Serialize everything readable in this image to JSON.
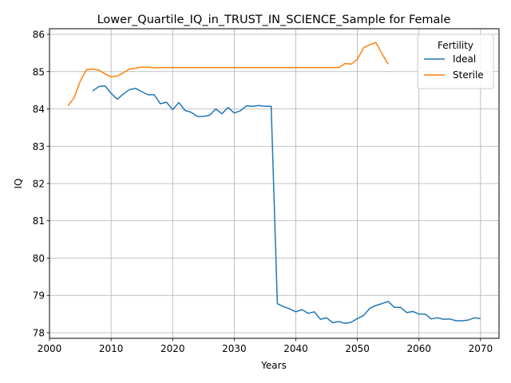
{
  "chart_data": {
    "type": "line",
    "title": "Lower_Quartile_IQ_in_TRUST_IN_SCIENCE_Sample for Female",
    "xlabel": "Years",
    "ylabel": "IQ",
    "xlim": [
      2000,
      2073
    ],
    "ylim": [
      77.85,
      86.15
    ],
    "xticks": [
      2000,
      2010,
      2020,
      2030,
      2040,
      2050,
      2060,
      2070
    ],
    "yticks": [
      78,
      79,
      80,
      81,
      82,
      83,
      84,
      85,
      86
    ],
    "grid": true,
    "legend": {
      "title": "Fertility",
      "placement": "top-right"
    },
    "series": [
      {
        "name": "Ideal",
        "color": "#1f77b4",
        "x": [
          2007,
          2008,
          2009,
          2010,
          2011,
          2012,
          2013,
          2014,
          2015,
          2016,
          2017,
          2018,
          2019,
          2020,
          2021,
          2022,
          2023,
          2024,
          2025,
          2026,
          2027,
          2028,
          2029,
          2030,
          2031,
          2032,
          2033,
          2034,
          2035,
          2036,
          2037,
          2038,
          2039,
          2040,
          2041,
          2042,
          2043,
          2044,
          2045,
          2046,
          2047,
          2048,
          2049,
          2050,
          2051,
          2052,
          2053,
          2054,
          2055,
          2056,
          2057,
          2058,
          2059,
          2060,
          2061,
          2062,
          2063,
          2064,
          2065,
          2066,
          2067,
          2068,
          2069,
          2070
        ],
        "y": [
          84.48,
          84.6,
          84.62,
          84.42,
          84.26,
          84.4,
          84.52,
          84.55,
          84.46,
          84.38,
          84.38,
          84.14,
          84.18,
          83.98,
          84.17,
          83.96,
          83.91,
          83.8,
          83.8,
          83.83,
          84.0,
          83.87,
          84.04,
          83.89,
          83.95,
          84.08,
          84.07,
          84.09,
          84.07,
          84.07,
          78.78,
          78.7,
          78.64,
          78.56,
          78.62,
          78.52,
          78.56,
          78.36,
          78.4,
          78.27,
          78.3,
          78.25,
          78.28,
          78.38,
          78.46,
          78.65,
          78.73,
          78.78,
          78.84,
          78.68,
          78.68,
          78.54,
          78.57,
          78.5,
          78.5,
          78.37,
          78.4,
          78.36,
          78.37,
          78.32,
          78.32,
          78.34,
          78.4,
          78.38
        ]
      },
      {
        "name": "Sterile",
        "color": "#ff7f0e",
        "x": [
          2003,
          2004,
          2005,
          2006,
          2007,
          2008,
          2009,
          2010,
          2011,
          2012,
          2013,
          2014,
          2015,
          2016,
          2017,
          2018,
          2019,
          2020,
          2021,
          2022,
          2023,
          2024,
          2025,
          2026,
          2027,
          2028,
          2029,
          2030,
          2031,
          2032,
          2033,
          2034,
          2035,
          2036,
          2037,
          2038,
          2039,
          2040,
          2041,
          2042,
          2043,
          2044,
          2045,
          2046,
          2047,
          2048,
          2049,
          2050,
          2051,
          2052,
          2053,
          2054,
          2055
        ],
        "y": [
          84.08,
          84.3,
          84.75,
          85.05,
          85.07,
          85.04,
          84.94,
          84.86,
          84.88,
          84.97,
          85.07,
          85.09,
          85.12,
          85.12,
          85.1,
          85.11,
          85.11,
          85.11,
          85.11,
          85.11,
          85.11,
          85.11,
          85.11,
          85.11,
          85.11,
          85.11,
          85.11,
          85.11,
          85.11,
          85.11,
          85.11,
          85.11,
          85.11,
          85.11,
          85.11,
          85.11,
          85.11,
          85.11,
          85.11,
          85.11,
          85.11,
          85.11,
          85.11,
          85.11,
          85.11,
          85.22,
          85.2,
          85.33,
          85.64,
          85.72,
          85.78,
          85.48,
          85.2
        ]
      }
    ]
  }
}
